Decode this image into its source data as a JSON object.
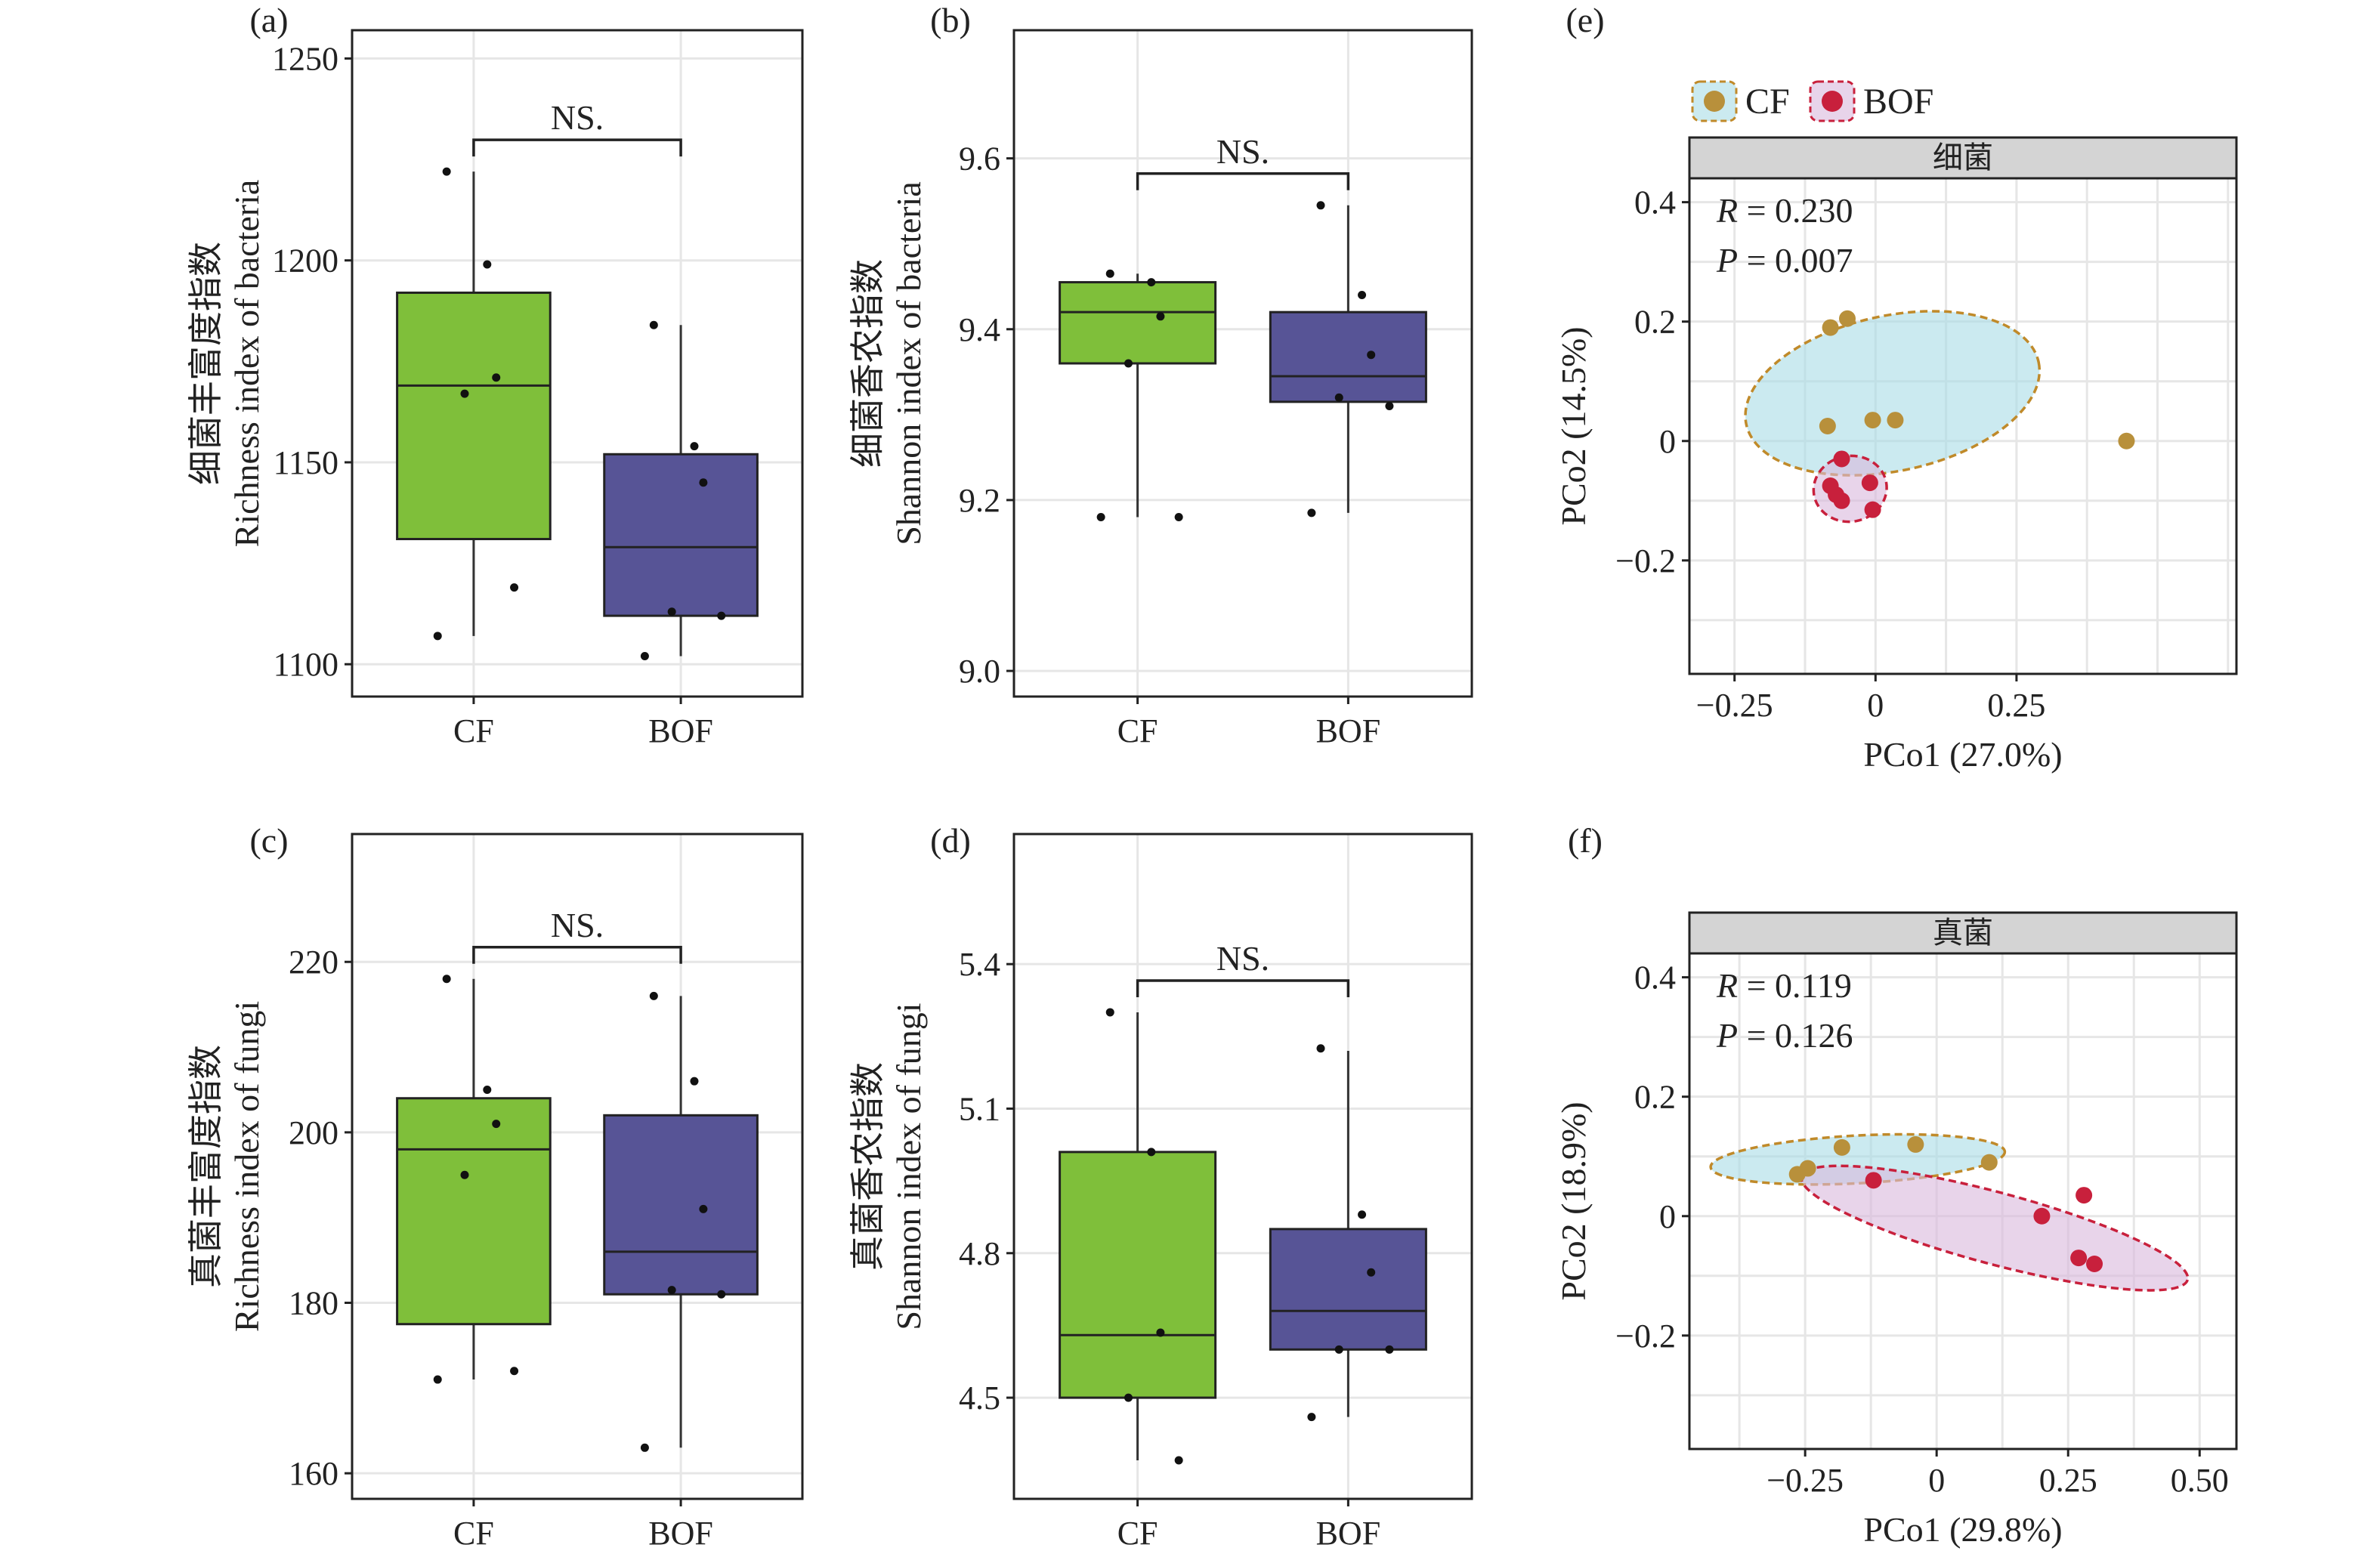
{
  "colors": {
    "cf_box": "#7fbf3a",
    "bof_box": "#575496",
    "cf_point": "#b8903b",
    "bof_point": "#c8203c",
    "cf_ellipse": "#a8dce6",
    "bof_ellipse": "#d9b8dc",
    "cf_ellipse_line": "#c08a2a",
    "bof_ellipse_line": "#c8203c"
  },
  "legend": {
    "cf": "CF",
    "bof": "BOF"
  },
  "chart_data": [
    {
      "id": "a",
      "panel_label": "(a)",
      "type": "box",
      "ylabel_cn": "细菌丰富度指数",
      "ylabel_en": "Richness index of bacteria",
      "ylim": [
        1092,
        1257
      ],
      "yticks": [
        1100,
        1150,
        1200,
        1250
      ],
      "ytick_labels": [
        "1100",
        "1150",
        "1200",
        "1250"
      ],
      "categories": [
        "CF",
        "BOF"
      ],
      "significance": "NS.",
      "boxes": [
        {
          "name": "CF",
          "min": 1107,
          "q1": 1131,
          "median": 1169,
          "q3": 1192,
          "max": 1222
        },
        {
          "name": "BOF",
          "min": 1102,
          "q1": 1112,
          "median": 1129,
          "q3": 1152,
          "max": 1184
        }
      ],
      "points": [
        {
          "group": "CF",
          "values": [
            1222,
            1199,
            1171,
            1167,
            1119,
            1107
          ]
        },
        {
          "group": "BOF",
          "values": [
            1184,
            1154,
            1145,
            1113,
            1112,
            1102
          ]
        }
      ]
    },
    {
      "id": "b",
      "panel_label": "(b)",
      "type": "box",
      "ylabel_cn": "细菌香农指数",
      "ylabel_en": "Shannon index of bacteria",
      "ylim": [
        8.97,
        9.75
      ],
      "yticks": [
        9.0,
        9.2,
        9.4,
        9.6
      ],
      "ytick_labels": [
        "9.0",
        "9.2",
        "9.4",
        "9.6"
      ],
      "categories": [
        "CF",
        "BOF"
      ],
      "significance": "NS.",
      "boxes": [
        {
          "name": "CF",
          "min": 9.18,
          "q1": 9.36,
          "median": 9.42,
          "q3": 9.455,
          "max": 9.465
        },
        {
          "name": "BOF",
          "min": 9.185,
          "q1": 9.315,
          "median": 9.345,
          "q3": 9.42,
          "max": 9.545
        }
      ],
      "points": [
        {
          "group": "CF",
          "values": [
            9.465,
            9.455,
            9.415,
            9.36,
            9.18,
            9.18
          ]
        },
        {
          "group": "BOF",
          "values": [
            9.545,
            9.44,
            9.37,
            9.32,
            9.31,
            9.185
          ]
        }
      ]
    },
    {
      "id": "c",
      "panel_label": "(c)",
      "type": "box",
      "ylabel_cn": "真菌丰富度指数",
      "ylabel_en": "Richness index of fungi",
      "ylim": [
        157,
        235
      ],
      "yticks": [
        160,
        180,
        200,
        220
      ],
      "ytick_labels": [
        "160",
        "180",
        "200",
        "220"
      ],
      "categories": [
        "CF",
        "BOF"
      ],
      "significance": "NS.",
      "boxes": [
        {
          "name": "CF",
          "min": 171,
          "q1": 177.5,
          "median": 198,
          "q3": 204,
          "max": 218
        },
        {
          "name": "BOF",
          "min": 163,
          "q1": 181,
          "median": 186,
          "q3": 202,
          "max": 216
        }
      ],
      "points": [
        {
          "group": "CF",
          "values": [
            218,
            205,
            201,
            195,
            172,
            171
          ]
        },
        {
          "group": "BOF",
          "values": [
            216,
            206,
            191,
            181.5,
            181,
            163
          ]
        }
      ]
    },
    {
      "id": "d",
      "panel_label": "(d)",
      "type": "box",
      "ylabel_cn": "真菌香农指数",
      "ylabel_en": "Shannon index of fungi",
      "ylim": [
        4.29,
        5.67
      ],
      "yticks": [
        4.5,
        4.8,
        5.1,
        5.4
      ],
      "ytick_labels": [
        "4.5",
        "4.8",
        "5.1",
        "5.4"
      ],
      "categories": [
        "CF",
        "BOF"
      ],
      "significance": "NS.",
      "boxes": [
        {
          "name": "CF",
          "min": 4.37,
          "q1": 4.5,
          "median": 4.63,
          "q3": 5.01,
          "max": 5.3
        },
        {
          "name": "BOF",
          "min": 4.46,
          "q1": 4.6,
          "median": 4.68,
          "q3": 4.85,
          "max": 5.22
        }
      ],
      "points": [
        {
          "group": "CF",
          "values": [
            5.3,
            5.01,
            4.635,
            4.5,
            4.37
          ]
        },
        {
          "group": "BOF",
          "values": [
            5.225,
            4.88,
            4.76,
            4.6,
            4.6,
            4.46
          ]
        }
      ]
    },
    {
      "id": "e",
      "panel_label": "(e)",
      "type": "scatter",
      "strip": "细菌",
      "xlabel": "PCo1 (27.0%)",
      "ylabel": "PCo2 (14.5%)",
      "xlim": [
        -0.33,
        0.64
      ],
      "ylim": [
        -0.39,
        0.44
      ],
      "xticks": [
        -0.25,
        0,
        0.25
      ],
      "xtick_labels": [
        "−0.25",
        "0",
        "0.25"
      ],
      "yticks": [
        -0.2,
        0,
        0.2,
        0.4
      ],
      "ytick_labels": [
        "−0.2",
        "0",
        "0.2",
        "0.4"
      ],
      "stat_r_sym": "R",
      "stat_r": " = 0.230",
      "stat_p_sym": "P",
      "stat_p": " = 0.007",
      "series": [
        {
          "name": "CF",
          "points": [
            [
              -0.05,
              0.205
            ],
            [
              -0.08,
              0.19
            ],
            [
              -0.005,
              0.035
            ],
            [
              0.035,
              0.035
            ],
            [
              -0.085,
              0.025
            ],
            [
              0.445,
              0.0
            ]
          ]
        },
        {
          "name": "BOF",
          "points": [
            [
              -0.06,
              -0.03
            ],
            [
              -0.08,
              -0.075
            ],
            [
              -0.07,
              -0.09
            ],
            [
              -0.06,
              -0.1
            ],
            [
              -0.01,
              -0.07
            ],
            [
              -0.005,
              -0.115
            ]
          ]
        }
      ],
      "ellipses": [
        {
          "name": "CF",
          "cx": 0.03,
          "cy": 0.08,
          "rx": 0.265,
          "ry": 0.13,
          "angle": -12
        },
        {
          "name": "BOF",
          "cx": -0.045,
          "cy": -0.08,
          "rx": 0.065,
          "ry": 0.055,
          "angle": -10
        }
      ]
    },
    {
      "id": "f",
      "panel_label": "(f)",
      "type": "scatter",
      "strip": "真菌",
      "xlabel": "PCo1 (29.8%)",
      "ylabel": "PCo2 (18.9%)",
      "xlim": [
        -0.47,
        0.57
      ],
      "ylim": [
        -0.39,
        0.44
      ],
      "xticks": [
        -0.25,
        0,
        0.25,
        0.5
      ],
      "xtick_labels": [
        "−0.25",
        "0",
        "0.25",
        "0.50"
      ],
      "yticks": [
        -0.2,
        0,
        0.2,
        0.4
      ],
      "ytick_labels": [
        "−0.2",
        "0",
        "0.2",
        "0.4"
      ],
      "stat_r_sym": "R",
      "stat_r": " = 0.119",
      "stat_p_sym": "P",
      "stat_p": " = 0.126",
      "series": [
        {
          "name": "CF",
          "points": [
            [
              -0.18,
              0.115
            ],
            [
              -0.04,
              0.12
            ],
            [
              0.1,
              0.09
            ],
            [
              -0.245,
              0.08
            ],
            [
              -0.265,
              0.07
            ]
          ]
        },
        {
          "name": "BOF",
          "points": [
            [
              -0.12,
              0.06
            ],
            [
              0.2,
              0.0
            ],
            [
              0.28,
              0.035
            ],
            [
              0.27,
              -0.07
            ],
            [
              0.3,
              -0.08
            ]
          ]
        }
      ],
      "ellipses": [
        {
          "name": "CF",
          "cx": -0.15,
          "cy": 0.095,
          "rx": 0.28,
          "ry": 0.04,
          "angle": -3
        },
        {
          "name": "BOF",
          "cx": 0.11,
          "cy": -0.02,
          "rx": 0.38,
          "ry": 0.06,
          "angle": 15
        }
      ]
    }
  ]
}
